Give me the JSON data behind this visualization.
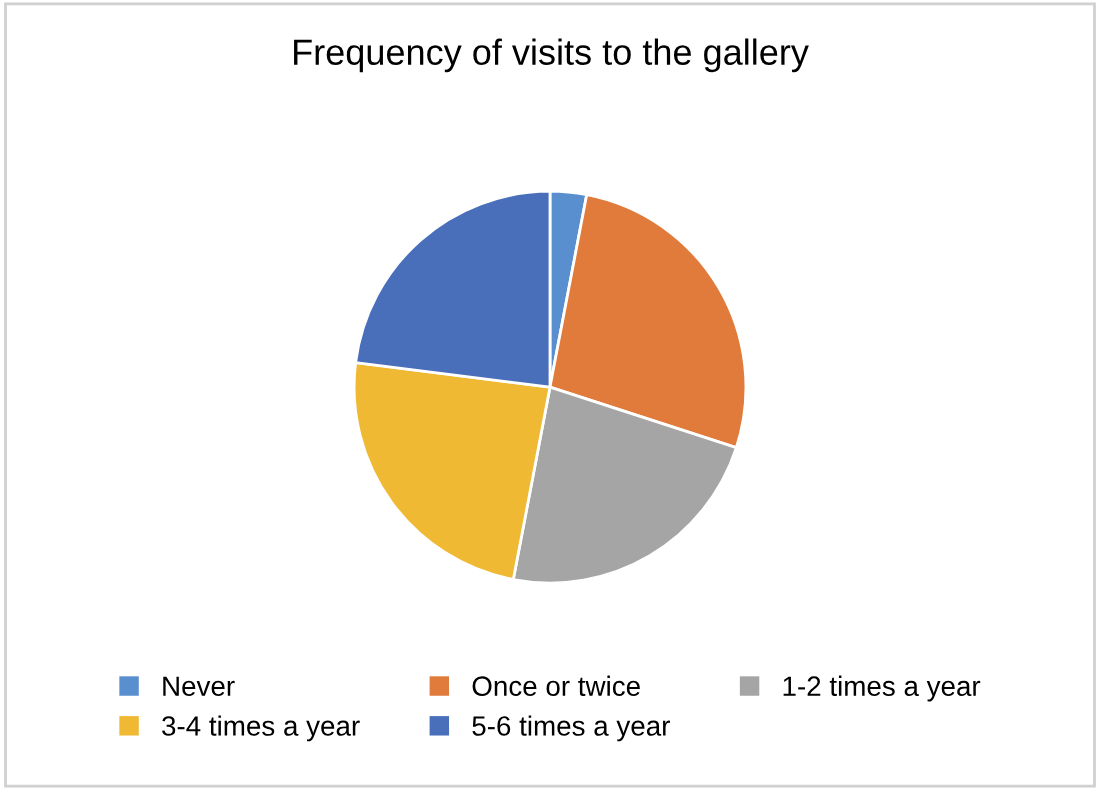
{
  "chart_data": {
    "type": "pie",
    "title": "Frequency of visits to the gallery",
    "categories": [
      "Never",
      "Once or twice",
      "1-2 times a year",
      "3-4 times a year",
      "5-6 times a year"
    ],
    "values": [
      3,
      27,
      23,
      24,
      23
    ],
    "colors": [
      "#5a8fcf",
      "#e07b3c",
      "#a5a5a5",
      "#f0b933",
      "#4a6fba"
    ],
    "legend": "bottom"
  }
}
